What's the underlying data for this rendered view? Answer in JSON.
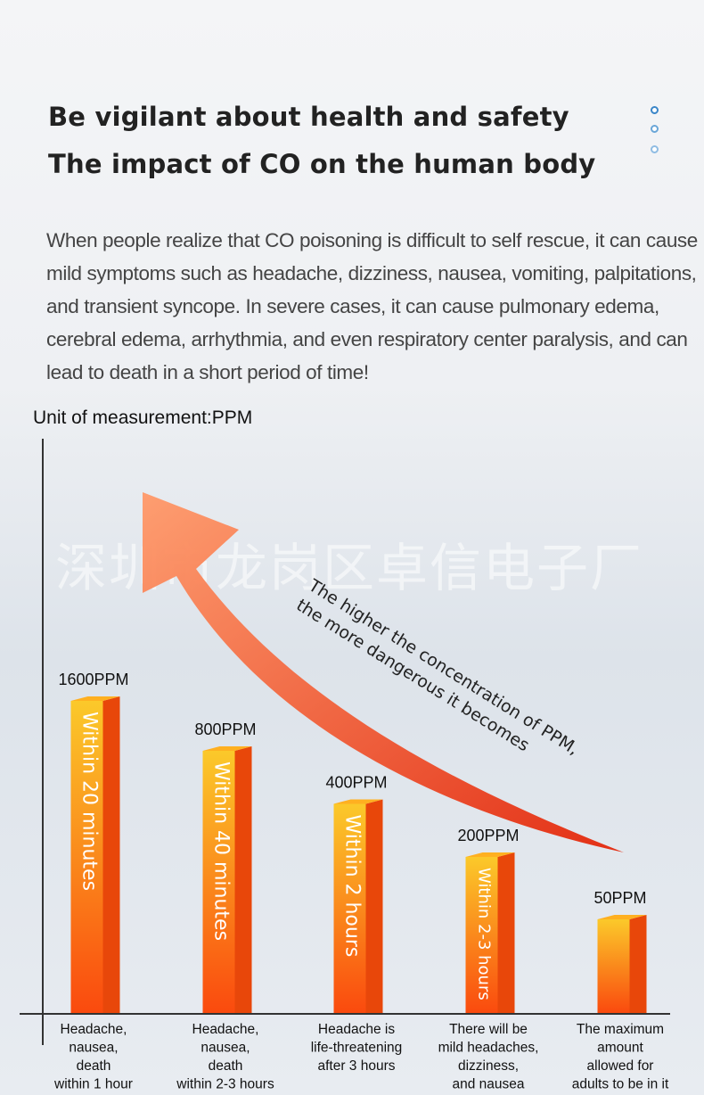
{
  "header": {
    "title_line1": "Be vigilant about health and safety",
    "title_line2": "The impact of CO on the human body"
  },
  "intro": "When people realize that CO poisoning is difficult to self rescue, it can cause mild symptoms such as headache, dizziness, nausea, vomiting, palpitations, and transient syncope. In severe cases, it can cause pulmonary edema, cerebral edema, arrhythmia, and even respiratory center paralysis, and can lead to death in a short period of time!",
  "watermark": "深圳市龙岗区卓信电子厂",
  "colors": {
    "bar_front_top": "#fbc92a",
    "bar_front_bottom": "#fa4a0e",
    "bar_side": "#e8470a",
    "bar_top": "#ffb020",
    "arrow_light": "#ff8a5a",
    "arrow_dark": "#e8290c"
  },
  "chart_data": {
    "type": "bar",
    "unit_label": "Unit of measurement:PPM",
    "categories": [
      "Headache, nausea, death within 1 hour",
      "Headache, nausea, death within 2-3 hours",
      "Headache is life-threatening after 3 hours",
      "There will be mild headaches, dizziness, and nausea",
      "The maximum amount allowed for adults to be in it"
    ],
    "category_lines": [
      [
        "Headache,",
        "nausea,",
        "death",
        "within 1 hour"
      ],
      [
        "Headache,",
        "nausea,",
        "death",
        "within 2-3 hours"
      ],
      [
        "Headache is",
        "life-threatening",
        "after 3 hours"
      ],
      [
        "There will be",
        "mild headaches,",
        "dizziness,",
        "and nausea"
      ],
      [
        "The maximum",
        "amount",
        "allowed for",
        "adults to be in it"
      ]
    ],
    "bar_levels": [
      1600,
      800,
      400,
      200,
      50
    ],
    "value_labels": [
      "1600PPM",
      "800PPM",
      "400PPM",
      "200PPM",
      "50PPM"
    ],
    "bar_texts": [
      "Within 20 minutes",
      "Within 40 minutes",
      "Within 2 hours",
      "Within 2-3 hours",
      ""
    ],
    "bar_rank_scale": [
      1,
      0.84,
      0.67,
      0.5,
      0.3
    ],
    "annotation_line1": "The higher the concentration of PPM,",
    "annotation_line2": "the more dangerous it becomes",
    "scale": "ordinal (bars ordered by PPM, not to linear scale)"
  }
}
